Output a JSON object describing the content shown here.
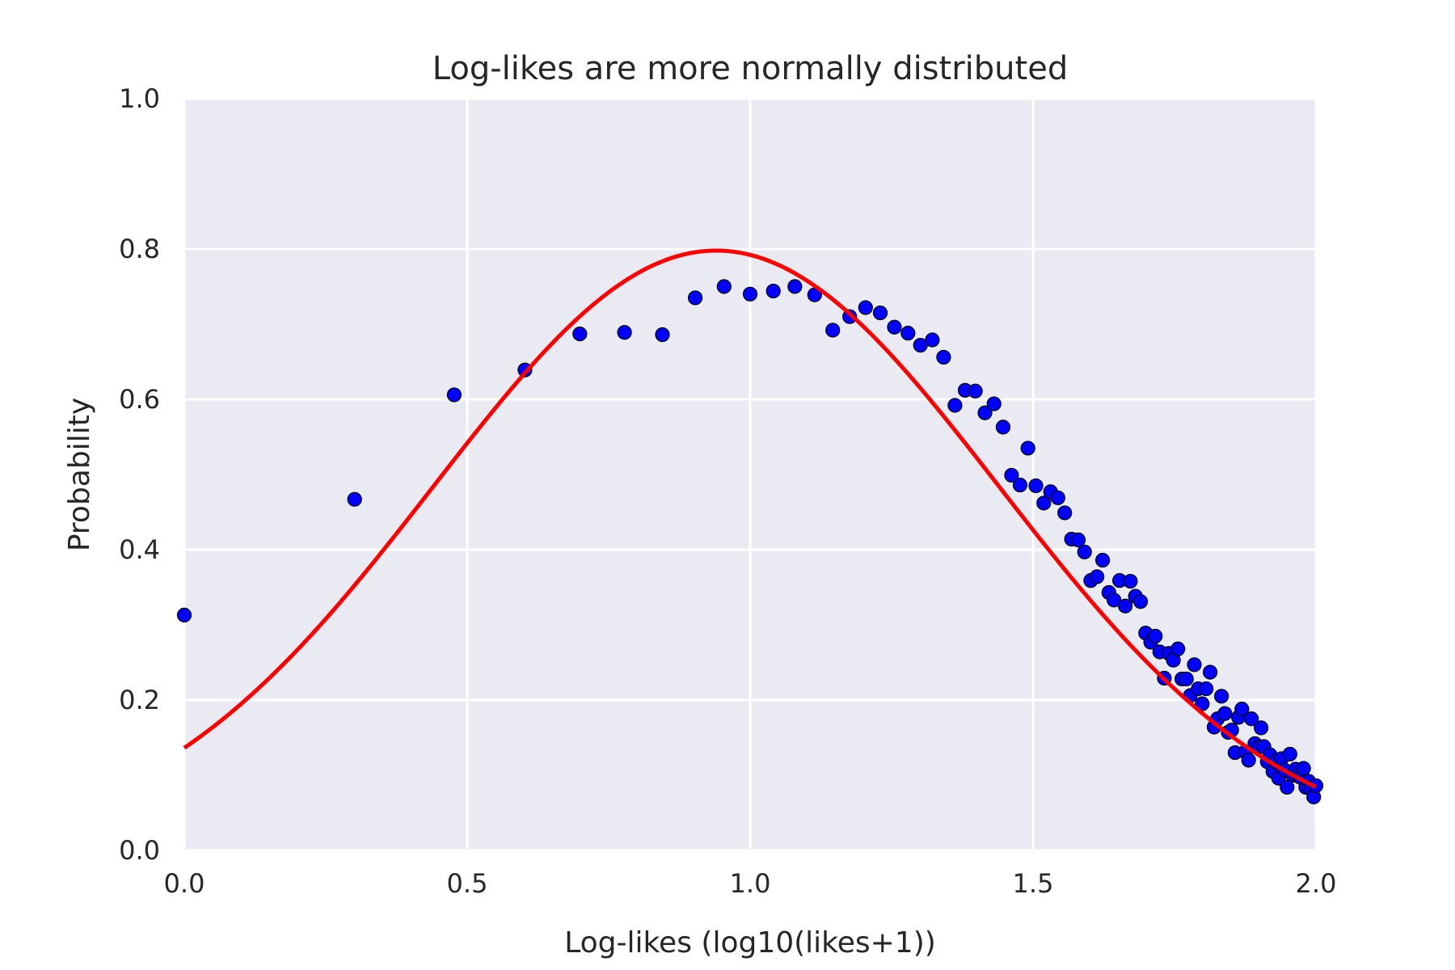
{
  "chart_data": {
    "type": "scatter",
    "title": "Log-likes are more normally distributed",
    "xlabel": "Log-likes (log10(likes+1))",
    "ylabel": "Probability",
    "xlim": [
      0,
      2
    ],
    "ylim": [
      0,
      1
    ],
    "xticks": [
      0.0,
      0.5,
      1.0,
      1.5,
      2.0
    ],
    "xtick_labels": [
      "0.0",
      "0.5",
      "1.0",
      "1.5",
      "2.0"
    ],
    "yticks": [
      0.0,
      0.2,
      0.4,
      0.6,
      0.8,
      1.0
    ],
    "ytick_labels": [
      "0.0",
      "0.2",
      "0.4",
      "0.6",
      "0.8",
      "1.0"
    ],
    "grid": true,
    "colors": {
      "background": "#eaeaf2",
      "grid": "#ffffff",
      "points": "#0000ff",
      "curve": "#ff0000",
      "text": "#262626"
    },
    "points": {
      "x": [
        0.0,
        0.301,
        0.477,
        0.602,
        0.699,
        0.778,
        0.845,
        0.903,
        0.954,
        1.0,
        1.041,
        1.079,
        1.114,
        1.146,
        1.176,
        1.204,
        1.23,
        1.255,
        1.279,
        1.301,
        1.322,
        1.342,
        1.362,
        1.38,
        1.398,
        1.415,
        1.431,
        1.447,
        1.462,
        1.477,
        1.491,
        1.505,
        1.519,
        1.531,
        1.544,
        1.556,
        1.568,
        1.58,
        1.591,
        1.602,
        1.613,
        1.623,
        1.634,
        1.643,
        1.653,
        1.663,
        1.672,
        1.681,
        1.69,
        1.699,
        1.708,
        1.716,
        1.724,
        1.732,
        1.74,
        1.748,
        1.756,
        1.763,
        1.771,
        1.778,
        1.785,
        1.792,
        1.799,
        1.806,
        1.813,
        1.82,
        1.826,
        1.833,
        1.839,
        1.845,
        1.851,
        1.857,
        1.863,
        1.869,
        1.875,
        1.881,
        1.886,
        1.892,
        1.898,
        1.903,
        1.908,
        1.914,
        1.919,
        1.924,
        1.929,
        1.934,
        1.939,
        1.944,
        1.949,
        1.954,
        1.959,
        1.964,
        1.968,
        1.973,
        1.978,
        1.982,
        1.987,
        1.991,
        1.996,
        2.0
      ],
      "y": [
        0.313,
        0.467,
        0.606,
        0.639,
        0.687,
        0.689,
        0.686,
        0.735,
        0.75,
        0.74,
        0.744,
        0.75,
        0.739,
        0.692,
        0.71,
        0.722,
        0.715,
        0.696,
        0.688,
        0.672,
        0.679,
        0.656,
        0.592,
        0.612,
        0.611,
        0.582,
        0.594,
        0.563,
        0.499,
        0.486,
        0.535,
        0.485,
        0.462,
        0.477,
        0.469,
        0.449,
        0.414,
        0.413,
        0.397,
        0.359,
        0.364,
        0.386,
        0.343,
        0.333,
        0.359,
        0.325,
        0.358,
        0.338,
        0.331,
        0.289,
        0.277,
        0.285,
        0.264,
        0.229,
        0.262,
        0.253,
        0.268,
        0.228,
        0.228,
        0.206,
        0.247,
        0.215,
        0.195,
        0.215,
        0.237,
        0.164,
        0.175,
        0.205,
        0.182,
        0.157,
        0.16,
        0.13,
        0.177,
        0.188,
        0.131,
        0.12,
        0.175,
        0.142,
        0.137,
        0.163,
        0.138,
        0.118,
        0.127,
        0.105,
        0.118,
        0.096,
        0.122,
        0.107,
        0.084,
        0.128,
        0.1,
        0.108,
        0.099,
        0.097,
        0.109,
        0.084,
        0.092,
        0.082,
        0.071,
        0.086
      ]
    },
    "fit_curve": {
      "type": "normal_pdf",
      "mean": 0.94,
      "std": 0.5
    }
  }
}
